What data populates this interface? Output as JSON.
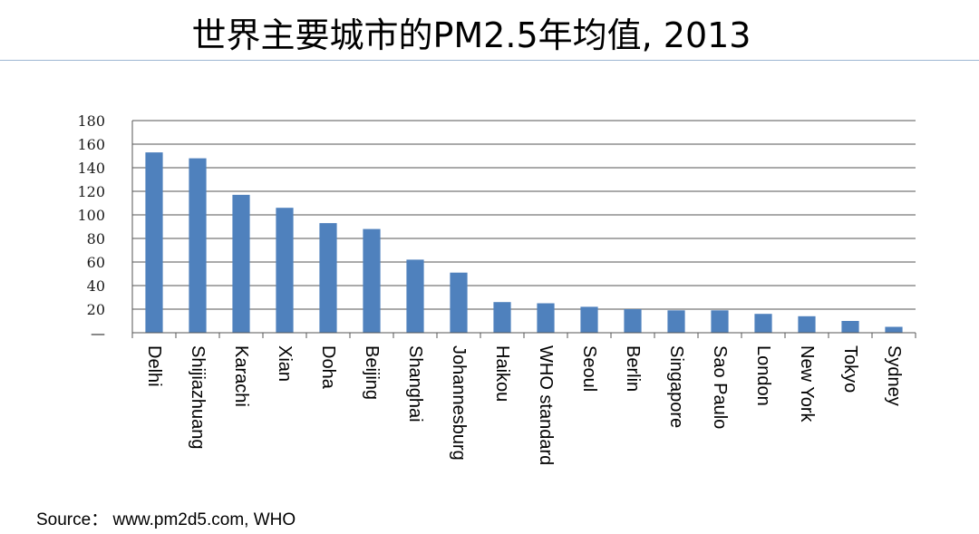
{
  "slide": {
    "title": "世界主要城市的PM2.5年均值, 2013",
    "source": "Source： www.pm2d5.com, WHO"
  },
  "colors": {
    "bar": "#4f81bd",
    "gridline": "#555555",
    "title_rule": "#9eb7d3"
  },
  "chart_data": {
    "type": "bar",
    "title": "",
    "xlabel": "",
    "ylabel": "",
    "ylim": [
      0,
      180
    ],
    "yticks": [
      "—",
      "20",
      "40",
      "60",
      "80",
      "100",
      "120",
      "140",
      "160",
      "180"
    ],
    "grid": true,
    "legend": "none",
    "categories": [
      "Delhi",
      "Shijiazhuang",
      "Karachi",
      "Xian",
      "Doha",
      "Beijing",
      "Shanghai",
      "Johannesburg",
      "Haikou",
      "WHO standard",
      "Seoul",
      "Berlin",
      "Singapore",
      "Sao Paulo",
      "London",
      "New York",
      "Tokyo",
      "Sydney"
    ],
    "values": [
      153,
      148,
      117,
      106,
      93,
      88,
      62,
      51,
      26,
      25,
      22,
      20,
      19,
      19,
      16,
      14,
      10,
      5
    ]
  }
}
